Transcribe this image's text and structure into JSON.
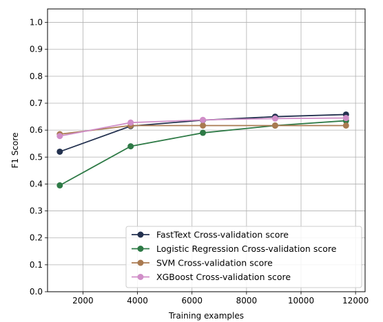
{
  "chart_data": {
    "type": "line",
    "title": "",
    "xlabel": "Training examples",
    "ylabel": "F1 Score",
    "xlim": [
      700,
      12350
    ],
    "ylim": [
      0.0,
      1.05
    ],
    "xticks": [
      2000,
      4000,
      6000,
      8000,
      10000,
      12000
    ],
    "yticks": [
      0.0,
      0.1,
      0.2,
      0.3,
      0.4,
      0.5,
      0.6,
      0.7,
      0.8,
      0.9,
      1.0
    ],
    "grid": true,
    "legend_position": "lower-right",
    "x": [
      1150,
      3750,
      6400,
      9050,
      11650
    ],
    "series": [
      {
        "name": "FastText Cross-validation score",
        "color": "#23314f",
        "values": [
          0.52,
          0.615,
          0.637,
          0.65,
          0.658
        ]
      },
      {
        "name": "Logistic Regression Cross-validation score",
        "color": "#2e7a46",
        "values": [
          0.395,
          0.54,
          0.59,
          0.617,
          0.635
        ]
      },
      {
        "name": "SVM Cross-validation score",
        "color": "#a97a50",
        "values": [
          0.585,
          0.617,
          0.617,
          0.617,
          0.617
        ]
      },
      {
        "name": "XGBoost Cross-validation score",
        "color": "#d08ec8",
        "values": [
          0.578,
          0.628,
          0.638,
          0.643,
          0.645
        ]
      }
    ]
  }
}
